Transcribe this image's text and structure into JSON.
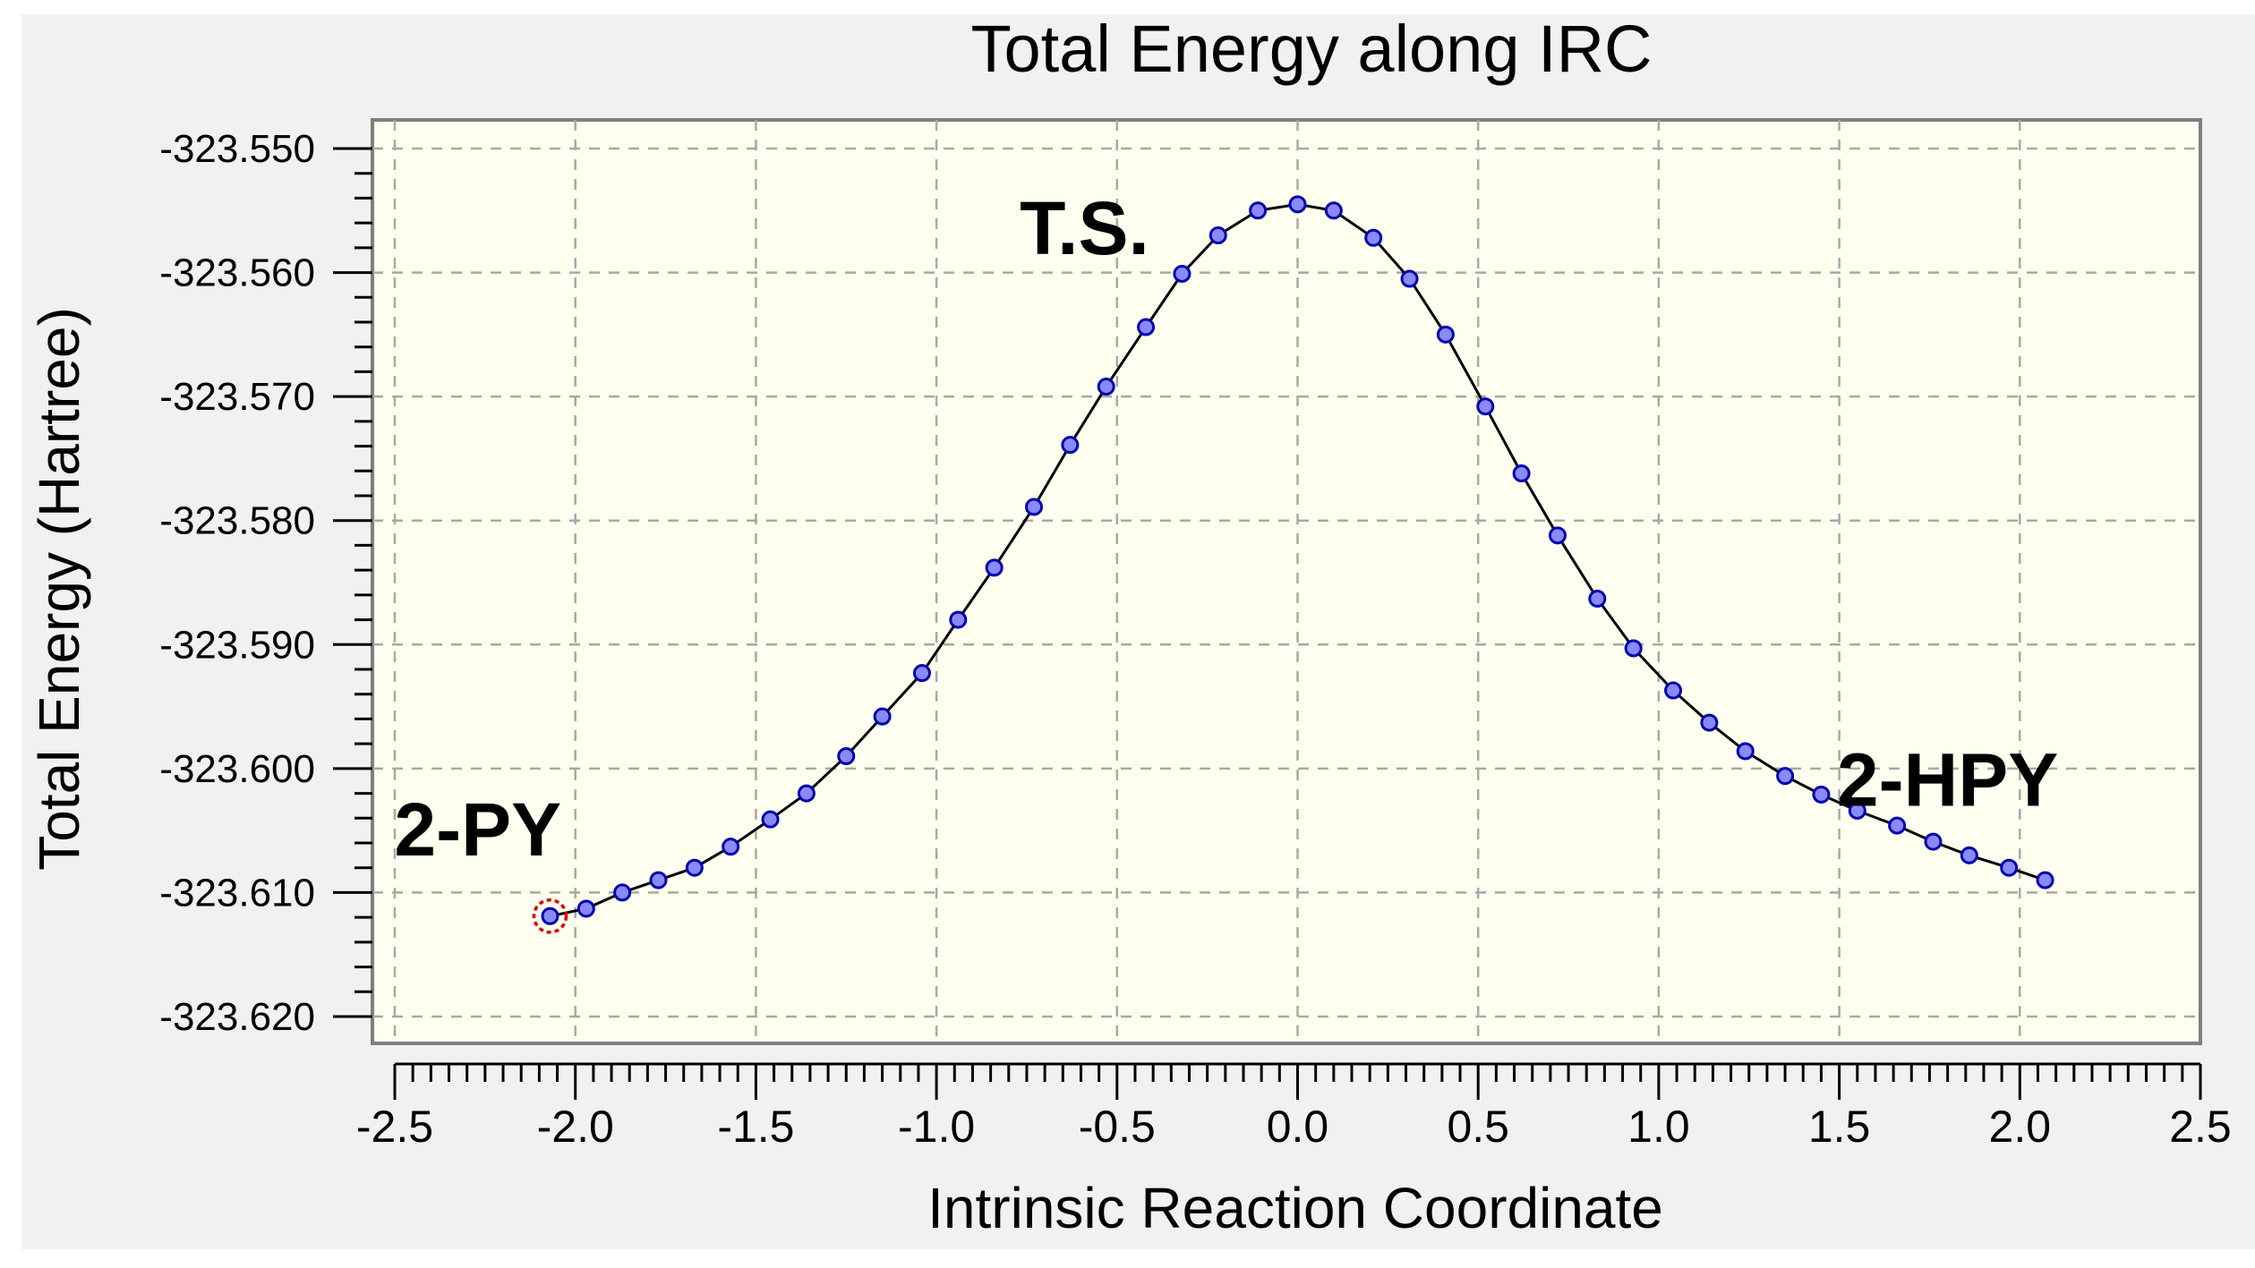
{
  "chart_data": {
    "type": "line",
    "title": "Total Energy along IRC",
    "xlabel": "Intrinsic Reaction Coordinate",
    "ylabel": "Total Energy (Hartree)",
    "xlim": [
      -2.5,
      2.5
    ],
    "ylim": [
      -323.62,
      -323.55
    ],
    "x_ticks": [
      -2.5,
      -2.0,
      -1.5,
      -1.0,
      -0.5,
      0.0,
      0.5,
      1.0,
      1.5,
      2.0,
      2.5
    ],
    "x_tick_labels": [
      "-2.5",
      "-2.0",
      "-1.5",
      "-1.0",
      "-0.5",
      "0.0",
      "0.5",
      "1.0",
      "1.5",
      "2.0",
      "2.5"
    ],
    "y_ticks": [
      -323.55,
      -323.56,
      -323.57,
      -323.58,
      -323.59,
      -323.6,
      -323.61,
      -323.62
    ],
    "y_tick_labels": [
      "-323.550",
      "-323.560",
      "-323.570",
      "-323.580",
      "-323.590",
      "-323.600",
      "-323.610",
      "-323.620"
    ],
    "grid": true,
    "series": [
      {
        "name": "IRC",
        "x": [
          -2.07,
          -1.97,
          -1.87,
          -1.77,
          -1.67,
          -1.57,
          -1.46,
          -1.36,
          -1.25,
          -1.15,
          -1.04,
          -0.94,
          -0.84,
          -0.73,
          -0.63,
          -0.53,
          -0.42,
          -0.32,
          -0.22,
          -0.11,
          0.0,
          0.1,
          0.21,
          0.31,
          0.41,
          0.52,
          0.62,
          0.72,
          0.83,
          0.93,
          1.04,
          1.14,
          1.24,
          1.35,
          1.45,
          1.55,
          1.66,
          1.76,
          1.86,
          1.97,
          2.07
        ],
        "y": [
          -323.6119,
          -323.6113,
          -323.61,
          -323.609,
          -323.608,
          -323.6063,
          -323.6041,
          -323.602,
          -323.599,
          -323.5958,
          -323.5923,
          -323.588,
          -323.5838,
          -323.5789,
          -323.5739,
          -323.5692,
          -323.5644,
          -323.5601,
          -323.557,
          -323.555,
          -323.5545,
          -323.555,
          -323.5572,
          -323.5605,
          -323.565,
          -323.5708,
          -323.5762,
          -323.5812,
          -323.5863,
          -323.5903,
          -323.5937,
          -323.5963,
          -323.5986,
          -323.6006,
          -323.6021,
          -323.6034,
          -323.6046,
          -323.6059,
          -323.607,
          -323.608,
          -323.609
        ]
      }
    ],
    "highlighted_point": {
      "x": -2.07,
      "y": -323.6119,
      "color": "#e00000"
    },
    "annotations": [
      {
        "text": "T.S.",
        "x": -0.59,
        "y": -323.5585
      },
      {
        "text": "2-PY",
        "x": -2.27,
        "y": -323.607
      },
      {
        "text": "2-HPY",
        "x": 1.8,
        "y": -323.603
      }
    ],
    "colors": {
      "plot_background": "#fffff0",
      "line": "#000000",
      "marker_fill": "#8a8aff",
      "marker_stroke": "#0000b0",
      "grid": "#a8a8a8",
      "frame": "#7f7f7f"
    }
  }
}
